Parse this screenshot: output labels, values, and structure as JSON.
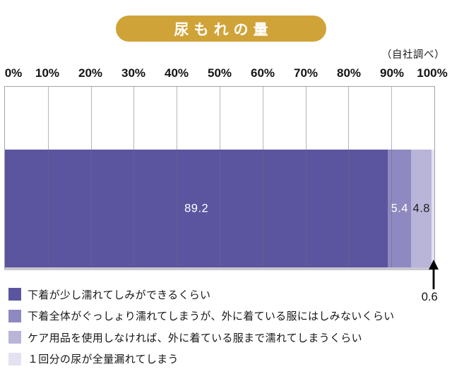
{
  "title": "尿もれの量",
  "source_note": "（自社調べ）",
  "colors": {
    "title_pill_bg": "#d0a338",
    "title_text": "#ffffff",
    "plot_frame": "#a5a3ab",
    "plot_bottom_strip": "#c8c7d0",
    "gridline": "rgba(108,106,122,0.5)",
    "arrow": "#000000"
  },
  "chart_data": {
    "type": "bar",
    "subtype": "horizontal-stacked-100pct",
    "title": "尿もれの量",
    "xlabel": "",
    "ylabel": "",
    "xlim": [
      0,
      100
    ],
    "grid": true,
    "legend_position": "bottom",
    "x_ticks": [
      "0%",
      "10%",
      "20%",
      "30%",
      "40%",
      "50%",
      "60%",
      "70%",
      "80%",
      "90%",
      "100%"
    ],
    "segments": [
      {
        "label": "下着が少し濡れてしみができるくらい",
        "value": 89.2,
        "value_label": "89.2",
        "color": "#5b55a0",
        "value_label_color": "#ffffff",
        "label_inside": true
      },
      {
        "label": "下着全体がぐっしょり濡れてしまうが、外に着ている服にはしみないくらい",
        "value": 5.4,
        "value_label": "5.4",
        "color": "#8e89c0",
        "value_label_color": "#ffffff",
        "label_inside": true
      },
      {
        "label": "ケア用品を使用しなければ、外に着ている服まで濡れてしまうくらい",
        "value": 4.8,
        "value_label": "4.8",
        "color": "#b9b5d9",
        "value_label_color": "#1d1d1d",
        "label_inside": true
      },
      {
        "label": "１回分の尿が全量漏れてしまう",
        "value": 0.6,
        "value_label": "0.6",
        "color": "#e4e2f1",
        "value_label_color": "#111111",
        "label_inside": false,
        "annotation": "arrow-below"
      }
    ]
  }
}
